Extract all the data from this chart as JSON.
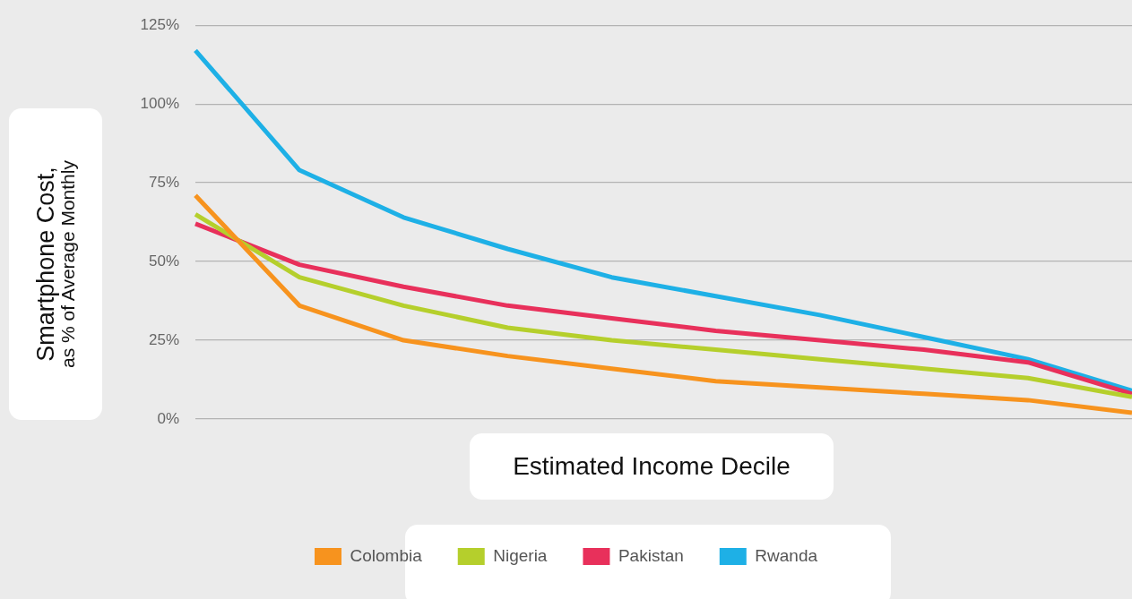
{
  "chart_data": {
    "type": "line",
    "xlabel": "Estimated Income Decile",
    "ylabel": "Smartphone Cost,\nas % of Average Monthly",
    "categories": [
      null,
      null,
      null,
      null,
      null,
      null,
      null,
      null,
      null,
      null
    ],
    "series": [
      {
        "name": "Colombia",
        "color": "#f7931e",
        "values": [
          71,
          36,
          25,
          20,
          16,
          12,
          10,
          8,
          6,
          2
        ]
      },
      {
        "name": "Nigeria",
        "color": "#b5cf2c",
        "values": [
          65,
          45,
          36,
          29,
          25,
          22,
          19,
          16,
          13,
          7
        ]
      },
      {
        "name": "Pakistan",
        "color": "#e8305b",
        "values": [
          62,
          49,
          42,
          36,
          32,
          28,
          25,
          22,
          18,
          8
        ]
      },
      {
        "name": "Rwanda",
        "color": "#1eb0e6",
        "values": [
          117,
          79,
          64,
          54,
          45,
          39,
          33,
          26,
          19,
          9
        ]
      }
    ],
    "ylim": [
      0,
      125
    ],
    "yticks": [
      {
        "value": 0,
        "label": "0%"
      },
      {
        "value": 25,
        "label": "25%"
      },
      {
        "value": 50,
        "label": "50%"
      },
      {
        "value": 75,
        "label": "75%"
      },
      {
        "value": 100,
        "label": "100%"
      },
      {
        "value": 125,
        "label": "125%"
      }
    ],
    "grid": "y",
    "legend": "bottom",
    "marker": "none",
    "line_style": "solid"
  }
}
